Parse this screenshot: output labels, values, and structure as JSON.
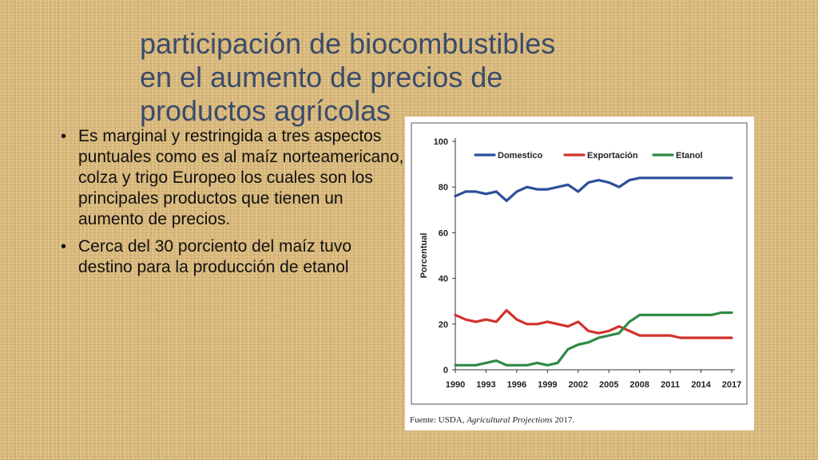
{
  "slide": {
    "title_lines": [
      "participación de biocombustibles",
      "en el aumento de precios de",
      "productos agrícolas"
    ],
    "bullets": [
      "Es marginal y restringida a tres aspectos puntuales como es al maíz norteamericano, colza y trigo Europeo los cuales son los principales productos que tienen un aumento de precios.",
      "Cerca del 30 porciento del maíz tuvo destino para la producción de etanol"
    ]
  },
  "source_note": {
    "prefix": "Fuente: USDA, ",
    "italic": "Agricultural Projections",
    "suffix": " 2017."
  },
  "chart_data": {
    "type": "line",
    "title": "",
    "xlabel": "",
    "ylabel": "Porcentual",
    "x": [
      1990,
      1991,
      1992,
      1993,
      1994,
      1995,
      1996,
      1997,
      1998,
      1999,
      2000,
      2001,
      2002,
      2003,
      2004,
      2005,
      2006,
      2007,
      2008,
      2009,
      2010,
      2011,
      2012,
      2013,
      2014,
      2015,
      2016,
      2017
    ],
    "xticks": [
      "1990",
      "1993",
      "1996",
      "1999",
      "2002",
      "2005",
      "2008",
      "2011",
      "2014",
      "2017"
    ],
    "yticks": [
      "0",
      "20",
      "40",
      "60",
      "80",
      "100"
    ],
    "ylim": [
      0,
      100
    ],
    "xlim": [
      1990,
      2017
    ],
    "legend_position": "top",
    "grid": false,
    "series": [
      {
        "name": "Domestico",
        "color": "#2b4f9a",
        "values": [
          76,
          78,
          78,
          77,
          78,
          74,
          78,
          80,
          79,
          79,
          80,
          81,
          78,
          82,
          83,
          82,
          80,
          83,
          84,
          84,
          84,
          84,
          84,
          84,
          84,
          84,
          84,
          84
        ]
      },
      {
        "name": "Exportación",
        "color": "#d2322d",
        "values": [
          24,
          22,
          21,
          22,
          21,
          26,
          22,
          20,
          20,
          21,
          20,
          19,
          21,
          17,
          16,
          17,
          19,
          17,
          15,
          15,
          15,
          15,
          14,
          14,
          14,
          14,
          14,
          14
        ]
      },
      {
        "name": "Etanol",
        "color": "#2f8a45",
        "values": [
          2,
          2,
          2,
          3,
          4,
          2,
          2,
          2,
          3,
          2,
          3,
          9,
          11,
          12,
          14,
          15,
          16,
          21,
          24,
          24,
          24,
          24,
          24,
          24,
          24,
          24,
          25,
          25
        ]
      }
    ]
  }
}
